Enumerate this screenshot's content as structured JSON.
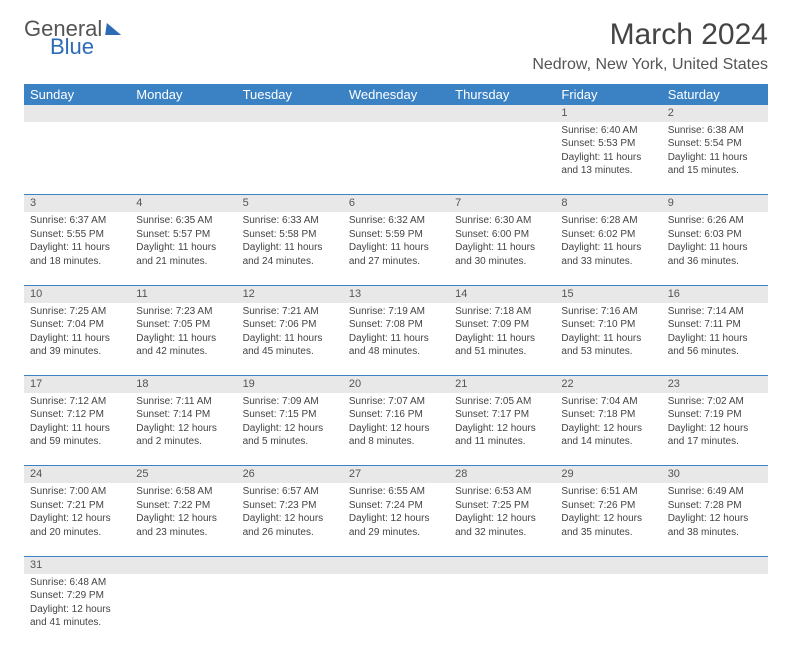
{
  "logo": {
    "text1": "General",
    "text2": "Blue"
  },
  "header": {
    "title": "March 2024",
    "location": "Nedrow, New York, United States"
  },
  "colors": {
    "header_bg": "#3b82c4",
    "header_fg": "#ffffff",
    "daynum_bg": "#e8e8e8",
    "row_border": "#3b82c4",
    "text": "#444444",
    "logo_blue": "#2d6bb5"
  },
  "weekdays": [
    "Sunday",
    "Monday",
    "Tuesday",
    "Wednesday",
    "Thursday",
    "Friday",
    "Saturday"
  ],
  "weeks": [
    {
      "nums": [
        "",
        "",
        "",
        "",
        "",
        "1",
        "2"
      ],
      "cells": [
        null,
        null,
        null,
        null,
        null,
        {
          "sunrise": "6:40 AM",
          "sunset": "5:53 PM",
          "daylight": "11 hours and 13 minutes."
        },
        {
          "sunrise": "6:38 AM",
          "sunset": "5:54 PM",
          "daylight": "11 hours and 15 minutes."
        }
      ]
    },
    {
      "nums": [
        "3",
        "4",
        "5",
        "6",
        "7",
        "8",
        "9"
      ],
      "cells": [
        {
          "sunrise": "6:37 AM",
          "sunset": "5:55 PM",
          "daylight": "11 hours and 18 minutes."
        },
        {
          "sunrise": "6:35 AM",
          "sunset": "5:57 PM",
          "daylight": "11 hours and 21 minutes."
        },
        {
          "sunrise": "6:33 AM",
          "sunset": "5:58 PM",
          "daylight": "11 hours and 24 minutes."
        },
        {
          "sunrise": "6:32 AM",
          "sunset": "5:59 PM",
          "daylight": "11 hours and 27 minutes."
        },
        {
          "sunrise": "6:30 AM",
          "sunset": "6:00 PM",
          "daylight": "11 hours and 30 minutes."
        },
        {
          "sunrise": "6:28 AM",
          "sunset": "6:02 PM",
          "daylight": "11 hours and 33 minutes."
        },
        {
          "sunrise": "6:26 AM",
          "sunset": "6:03 PM",
          "daylight": "11 hours and 36 minutes."
        }
      ]
    },
    {
      "nums": [
        "10",
        "11",
        "12",
        "13",
        "14",
        "15",
        "16"
      ],
      "cells": [
        {
          "sunrise": "7:25 AM",
          "sunset": "7:04 PM",
          "daylight": "11 hours and 39 minutes."
        },
        {
          "sunrise": "7:23 AM",
          "sunset": "7:05 PM",
          "daylight": "11 hours and 42 minutes."
        },
        {
          "sunrise": "7:21 AM",
          "sunset": "7:06 PM",
          "daylight": "11 hours and 45 minutes."
        },
        {
          "sunrise": "7:19 AM",
          "sunset": "7:08 PM",
          "daylight": "11 hours and 48 minutes."
        },
        {
          "sunrise": "7:18 AM",
          "sunset": "7:09 PM",
          "daylight": "11 hours and 51 minutes."
        },
        {
          "sunrise": "7:16 AM",
          "sunset": "7:10 PM",
          "daylight": "11 hours and 53 minutes."
        },
        {
          "sunrise": "7:14 AM",
          "sunset": "7:11 PM",
          "daylight": "11 hours and 56 minutes."
        }
      ]
    },
    {
      "nums": [
        "17",
        "18",
        "19",
        "20",
        "21",
        "22",
        "23"
      ],
      "cells": [
        {
          "sunrise": "7:12 AM",
          "sunset": "7:12 PM",
          "daylight": "11 hours and 59 minutes."
        },
        {
          "sunrise": "7:11 AM",
          "sunset": "7:14 PM",
          "daylight": "12 hours and 2 minutes."
        },
        {
          "sunrise": "7:09 AM",
          "sunset": "7:15 PM",
          "daylight": "12 hours and 5 minutes."
        },
        {
          "sunrise": "7:07 AM",
          "sunset": "7:16 PM",
          "daylight": "12 hours and 8 minutes."
        },
        {
          "sunrise": "7:05 AM",
          "sunset": "7:17 PM",
          "daylight": "12 hours and 11 minutes."
        },
        {
          "sunrise": "7:04 AM",
          "sunset": "7:18 PM",
          "daylight": "12 hours and 14 minutes."
        },
        {
          "sunrise": "7:02 AM",
          "sunset": "7:19 PM",
          "daylight": "12 hours and 17 minutes."
        }
      ]
    },
    {
      "nums": [
        "24",
        "25",
        "26",
        "27",
        "28",
        "29",
        "30"
      ],
      "cells": [
        {
          "sunrise": "7:00 AM",
          "sunset": "7:21 PM",
          "daylight": "12 hours and 20 minutes."
        },
        {
          "sunrise": "6:58 AM",
          "sunset": "7:22 PM",
          "daylight": "12 hours and 23 minutes."
        },
        {
          "sunrise": "6:57 AM",
          "sunset": "7:23 PM",
          "daylight": "12 hours and 26 minutes."
        },
        {
          "sunrise": "6:55 AM",
          "sunset": "7:24 PM",
          "daylight": "12 hours and 29 minutes."
        },
        {
          "sunrise": "6:53 AM",
          "sunset": "7:25 PM",
          "daylight": "12 hours and 32 minutes."
        },
        {
          "sunrise": "6:51 AM",
          "sunset": "7:26 PM",
          "daylight": "12 hours and 35 minutes."
        },
        {
          "sunrise": "6:49 AM",
          "sunset": "7:28 PM",
          "daylight": "12 hours and 38 minutes."
        }
      ]
    },
    {
      "nums": [
        "31",
        "",
        "",
        "",
        "",
        "",
        ""
      ],
      "cells": [
        {
          "sunrise": "6:48 AM",
          "sunset": "7:29 PM",
          "daylight": "12 hours and 41 minutes."
        },
        null,
        null,
        null,
        null,
        null,
        null
      ]
    }
  ],
  "labels": {
    "sunrise": "Sunrise:",
    "sunset": "Sunset:",
    "daylight": "Daylight:"
  }
}
